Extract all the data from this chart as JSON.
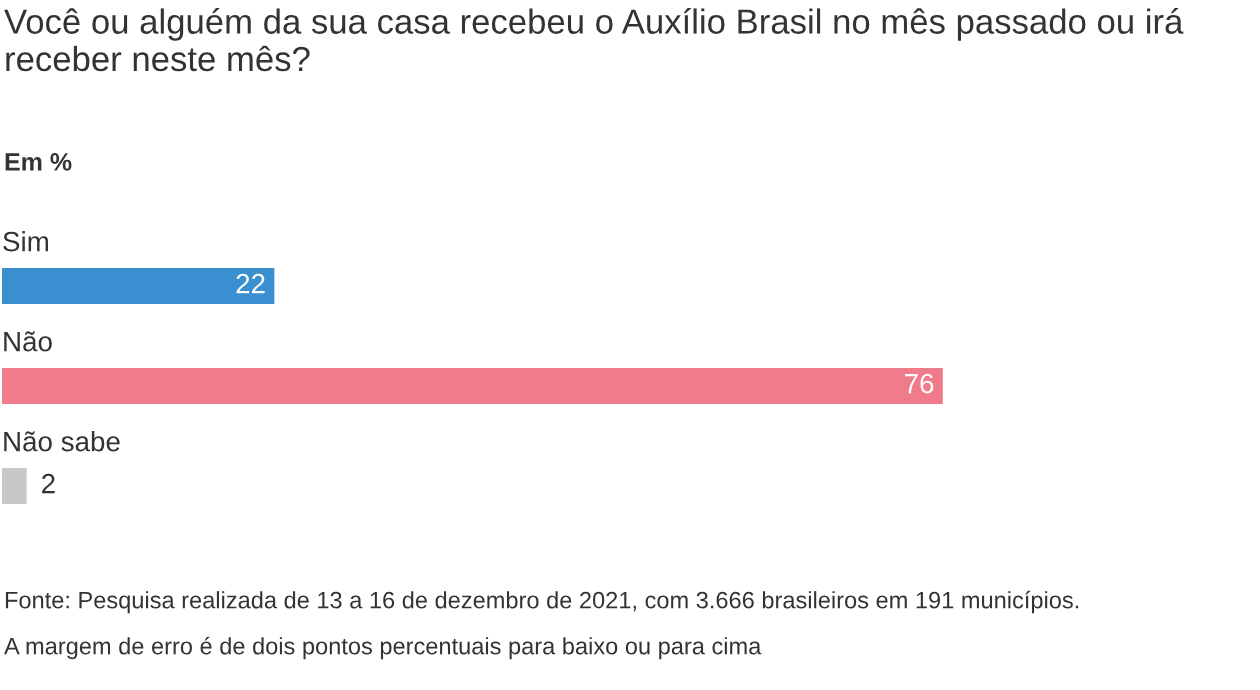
{
  "chart_data": {
    "type": "bar",
    "orientation": "horizontal",
    "title": "Você ou alguém da sua casa recebeu o Auxílio Brasil no mês passado ou irá receber neste mês?",
    "subtitle": "Em %",
    "categories": [
      "Sim",
      "Não",
      "Não sabe"
    ],
    "values": [
      22,
      76,
      2
    ],
    "colors": [
      "#3a8fd0",
      "#f07b8a",
      "#c8c8c8"
    ],
    "data_labels": true,
    "annotations": [
      "Fonte: Pesquisa realizada de 13 a 16 de dezembro de 2021, com 3.666 brasileiros em 191 municípios.",
      "A margem de erro é de dois pontos percentuais para baixo ou para cima"
    ]
  }
}
